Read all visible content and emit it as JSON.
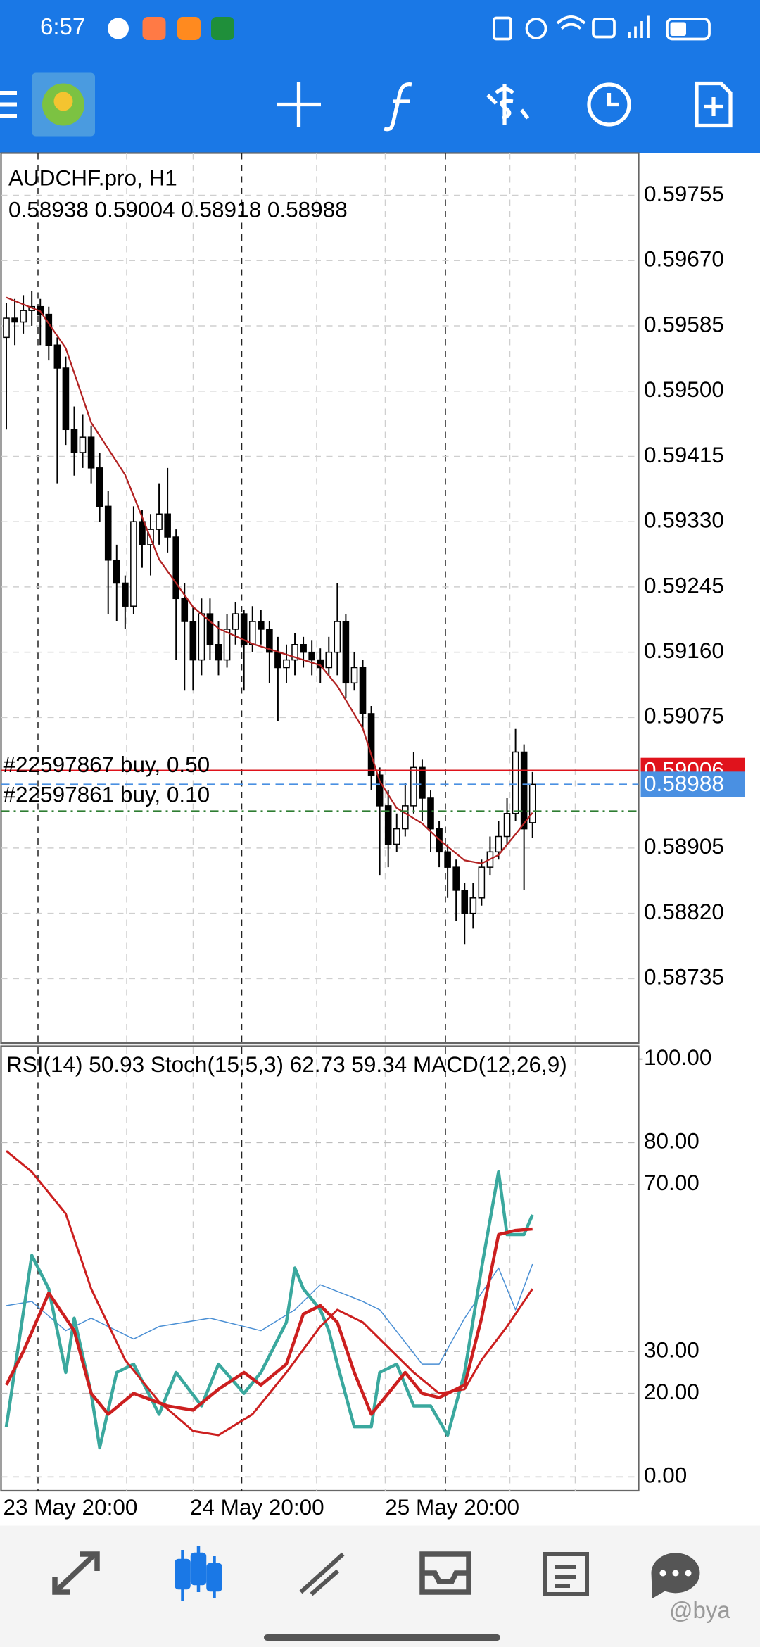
{
  "status_bar": {
    "time": "6:57"
  },
  "watermark": "@bya",
  "chart_data": [
    {
      "type": "candlestick",
      "title": "AUDCHF.pro, H1",
      "subtitle": "0.58938 0.59004 0.58918 0.58988",
      "categories": [
        "23 May 20:00",
        null,
        null,
        null,
        null,
        null,
        null,
        null,
        null,
        null,
        null,
        null,
        null,
        null,
        null,
        null,
        null,
        null,
        null,
        null,
        null,
        null,
        "24 May 20:00",
        null,
        null,
        null,
        null,
        null,
        null,
        null,
        null,
        null,
        null,
        null,
        null,
        null,
        null,
        null,
        null,
        null,
        null,
        null,
        null,
        null,
        null,
        "25 May 20:00",
        null,
        null,
        null,
        null,
        null,
        null,
        null,
        null,
        null,
        null,
        null,
        null,
        null,
        null,
        null,
        null,
        null
      ],
      "open": [
        0.5957,
        0.59595,
        0.5959,
        0.59605,
        0.5961,
        0.596,
        0.5956,
        0.5953,
        0.5945,
        0.5942,
        0.5944,
        0.594,
        0.5935,
        0.5928,
        0.5925,
        0.5922,
        0.5933,
        0.593,
        0.5932,
        0.5934,
        0.5931,
        0.5923,
        0.592,
        0.5915,
        0.5921,
        0.5917,
        0.5915,
        0.5919,
        0.5921,
        0.5917,
        0.592,
        0.5919,
        0.5916,
        0.5914,
        0.5915,
        0.5917,
        0.5916,
        0.5915,
        0.5914,
        0.5916,
        0.592,
        0.5912,
        0.5914,
        0.5908,
        0.59,
        0.5896,
        0.5891,
        0.5893,
        0.5896,
        0.5901,
        0.5897,
        0.5893,
        0.589,
        0.5888,
        0.5885,
        0.5882,
        0.5884,
        0.5888,
        0.589,
        0.5892,
        0.5895,
        0.5903,
        0.58938
      ],
      "high": [
        0.59615,
        0.5962,
        0.59625,
        0.5963,
        0.5962,
        0.5961,
        0.5957,
        0.59545,
        0.5948,
        0.5947,
        0.59455,
        0.5942,
        0.5937,
        0.593,
        0.5926,
        0.5935,
        0.59345,
        0.5934,
        0.5938,
        0.594,
        0.5932,
        0.5925,
        0.5922,
        0.5923,
        0.5923,
        0.592,
        0.5921,
        0.59225,
        0.59215,
        0.5922,
        0.59215,
        0.592,
        0.5918,
        0.5917,
        0.59185,
        0.5918,
        0.59175,
        0.59165,
        0.5918,
        0.5925,
        0.5921,
        0.5916,
        0.5915,
        0.5909,
        0.5901,
        0.5898,
        0.5895,
        0.5899,
        0.5903,
        0.5902,
        0.5898,
        0.5894,
        0.5891,
        0.5889,
        0.5886,
        0.5886,
        0.5889,
        0.5892,
        0.5894,
        0.5897,
        0.5906,
        0.5904,
        0.59004
      ],
      "low": [
        0.5945,
        0.5956,
        0.59575,
        0.59585,
        0.5956,
        0.5954,
        0.5938,
        0.5943,
        0.5939,
        0.594,
        0.5938,
        0.5933,
        0.5921,
        0.592,
        0.5919,
        0.5921,
        0.5927,
        0.5926,
        0.593,
        0.5929,
        0.5915,
        0.5911,
        0.5911,
        0.5913,
        0.5915,
        0.5913,
        0.5914,
        0.5917,
        0.5911,
        0.5916,
        0.5917,
        0.5912,
        0.5907,
        0.5912,
        0.5913,
        0.5914,
        0.5913,
        0.5912,
        0.5913,
        0.5913,
        0.591,
        0.5911,
        0.5906,
        0.5898,
        0.5887,
        0.5888,
        0.589,
        0.5892,
        0.5895,
        0.5894,
        0.589,
        0.5888,
        0.5884,
        0.5881,
        0.5878,
        0.588,
        0.5883,
        0.5887,
        0.5889,
        0.5891,
        0.5894,
        0.5885,
        0.58918
      ],
      "close": [
        0.59595,
        0.5959,
        0.59605,
        0.5961,
        0.596,
        0.5956,
        0.5953,
        0.5945,
        0.5942,
        0.5944,
        0.594,
        0.5935,
        0.5928,
        0.5925,
        0.5922,
        0.5933,
        0.593,
        0.5932,
        0.5934,
        0.5931,
        0.5923,
        0.592,
        0.5915,
        0.5921,
        0.5917,
        0.5915,
        0.5919,
        0.5921,
        0.5917,
        0.592,
        0.5919,
        0.5916,
        0.5914,
        0.5915,
        0.5917,
        0.5916,
        0.5915,
        0.5914,
        0.5916,
        0.592,
        0.5912,
        0.5914,
        0.5908,
        0.59,
        0.5896,
        0.5891,
        0.5893,
        0.5896,
        0.5901,
        0.5897,
        0.5893,
        0.589,
        0.5888,
        0.5885,
        0.5882,
        0.5884,
        0.5888,
        0.589,
        0.5892,
        0.5895,
        0.5903,
        0.5893,
        0.58988
      ],
      "up_color": "#ffffff",
      "down_color": "#000000",
      "wick_color": "#000000",
      "ma": {
        "color": "#b22222",
        "x": [
          0,
          4,
          7,
          10,
          14,
          18,
          22,
          25,
          29,
          33,
          37,
          39,
          42,
          44,
          46,
          49,
          51,
          54,
          56,
          58,
          60,
          62
        ],
        "values": [
          0.59622,
          0.59604,
          0.59556,
          0.59459,
          0.59391,
          0.59281,
          0.59219,
          0.59191,
          0.59171,
          0.59157,
          0.59143,
          0.59116,
          0.59061,
          0.58992,
          0.58957,
          0.58937,
          0.58916,
          0.58889,
          0.58885,
          0.58896,
          0.58923,
          0.58951
        ]
      },
      "orders": [
        {
          "label": "#22597867 buy, 0.50",
          "value": 0.59006,
          "color": "#c62828",
          "dash": "solid"
        },
        {
          "label": "#22597861 buy, 0.10",
          "value": 0.58953,
          "color": "#2e7d32",
          "dash": "dashdot"
        }
      ],
      "price_tags": [
        {
          "value": 0.59006,
          "color": "#e0131c"
        },
        {
          "value": 0.58988,
          "color": "#4a90e2"
        }
      ],
      "ylim": [
        0.58651,
        0.5981
      ],
      "yticks": [
        0.59755,
        {
          "value": 0.5967,
          "label": "0.59670"
        },
        0.59585,
        {
          "value": 0.595,
          "label": "0.59500"
        },
        0.59415,
        {
          "value": 0.5933,
          "label": "0.59330"
        },
        0.59245,
        {
          "value": 0.5916,
          "label": "0.59160"
        },
        0.59075,
        0.58905,
        {
          "value": 0.5882,
          "label": "0.58820"
        },
        0.58735
      ],
      "grid": true
    },
    {
      "type": "line",
      "header": [
        "RSI(14)",
        50.93,
        "Stoch(15,5,3)",
        62.73,
        59.34,
        "MACD(12,26,9)"
      ],
      "series": [
        {
          "color": "#4a8fd4",
          "width": 1,
          "x": [
            0,
            3,
            7,
            10,
            15,
            18,
            24,
            30,
            34,
            37,
            42,
            44,
            49,
            51,
            54,
            58,
            60,
            62
          ],
          "values": [
            41,
            42,
            35,
            38,
            33,
            36,
            38,
            35,
            40,
            46,
            42,
            40,
            27,
            27,
            38,
            50,
            40,
            50.93
          ]
        },
        {
          "color": "#3aa89e",
          "width": 3,
          "x": [
            0,
            3,
            5,
            7,
            8,
            10,
            11,
            13,
            15,
            18,
            20,
            23,
            25,
            28,
            30,
            33,
            34,
            35,
            37,
            38,
            39,
            41,
            43,
            44,
            46,
            48,
            50,
            52,
            54,
            56,
            58,
            59,
            61,
            62
          ],
          "values": [
            12,
            53,
            45,
            25,
            38,
            20,
            7,
            25,
            27,
            15,
            25,
            17,
            27,
            20,
            25,
            37,
            50,
            45,
            40,
            35,
            27,
            12,
            12,
            25,
            27,
            17,
            17,
            10,
            25,
            50,
            73,
            58,
            58,
            62.73
          ]
        },
        {
          "color": "#cc1f1f",
          "width": 3,
          "x": [
            0,
            2,
            5,
            8,
            10,
            12,
            15,
            19,
            22,
            25,
            28,
            30,
            33,
            35,
            37,
            39,
            41,
            43,
            45,
            47,
            49,
            51,
            54,
            56,
            58,
            60,
            62
          ],
          "values": [
            22,
            30,
            44,
            35,
            20,
            15,
            20,
            17,
            16,
            21,
            25,
            22,
            27,
            39,
            41,
            37,
            25,
            15,
            20,
            25,
            20,
            19,
            22,
            38,
            58,
            59,
            59.34
          ]
        },
        {
          "color": "#cc1f1f",
          "width": 2,
          "x": [
            0,
            3,
            7,
            10,
            14,
            18,
            22,
            25,
            29,
            33,
            37,
            39,
            42,
            45,
            48,
            51,
            54,
            56,
            59,
            62
          ],
          "values": [
            78,
            73,
            63,
            45,
            28,
            18,
            11,
            10,
            15,
            25,
            36,
            40,
            37,
            31,
            25,
            20,
            21,
            28,
            36,
            45
          ]
        }
      ],
      "ylim": [
        -3.3,
        102.8
      ],
      "yticks": [
        {
          "value": 100,
          "label": "100.00"
        },
        {
          "value": 80,
          "label": "80.00"
        },
        {
          "value": 70,
          "label": "70.00"
        },
        {
          "value": 30,
          "label": "30.00"
        },
        {
          "value": 20,
          "label": "20.00"
        },
        {
          "value": 0,
          "label": "0.00"
        }
      ],
      "grid": true
    }
  ]
}
